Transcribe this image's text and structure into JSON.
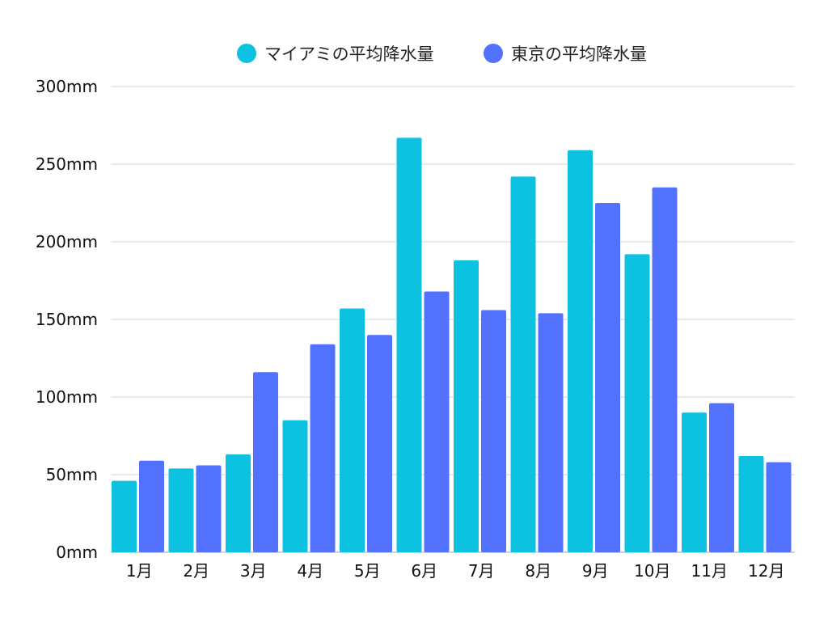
{
  "chart_data": {
    "type": "bar",
    "title": "",
    "xlabel": "",
    "ylabel": "",
    "categories": [
      "1月",
      "2月",
      "3月",
      "4月",
      "5月",
      "6月",
      "7月",
      "8月",
      "9月",
      "10月",
      "11月",
      "12月"
    ],
    "series": [
      {
        "name": "マイアミの平均降水量",
        "color": "#0dc1e0",
        "values": [
          46,
          54,
          63,
          85,
          157,
          267,
          188,
          242,
          259,
          192,
          90,
          62
        ]
      },
      {
        "name": "東京の平均降水量",
        "color": "#5271ff",
        "values": [
          59,
          56,
          116,
          134,
          140,
          168,
          156,
          154,
          225,
          235,
          96,
          58
        ]
      }
    ],
    "ylim": [
      0,
      300
    ],
    "yticks": [
      0,
      50,
      100,
      150,
      200,
      250,
      300
    ],
    "ytick_labels": [
      "0mm",
      "50mm",
      "100mm",
      "150mm",
      "200mm",
      "250mm",
      "300mm"
    ],
    "grid": true,
    "legend_position": "top-center"
  }
}
